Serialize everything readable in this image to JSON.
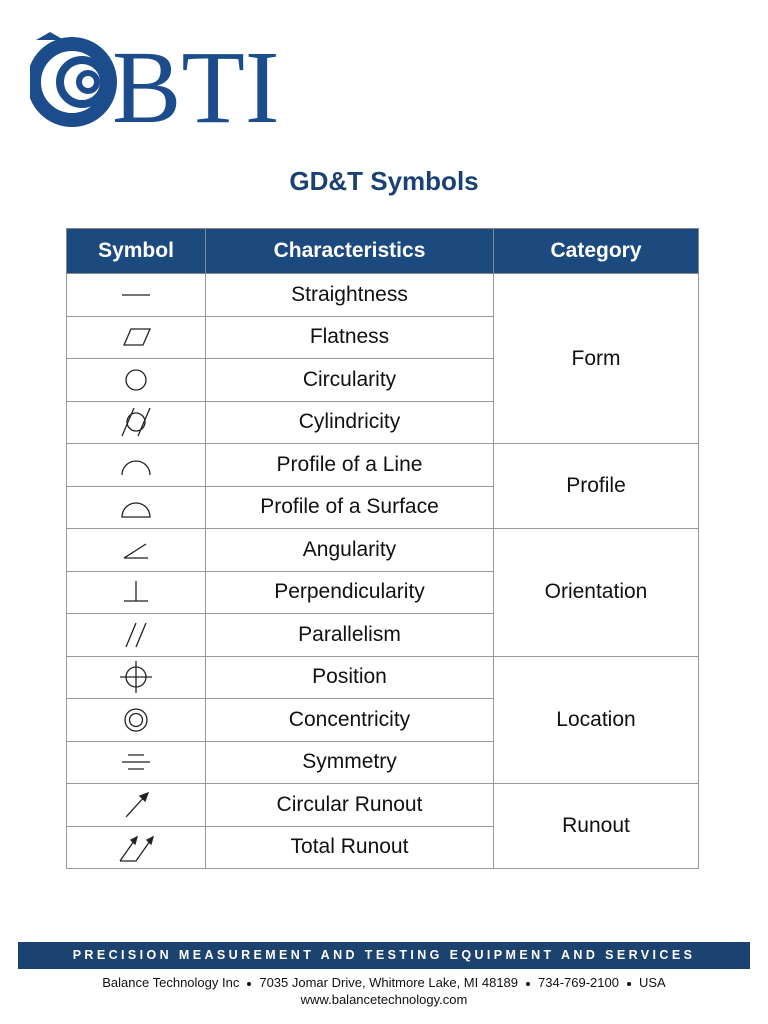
{
  "logo": {
    "text": "BTI"
  },
  "title": "GD&T Symbols",
  "table": {
    "headers": [
      "Symbol",
      "Characteristics",
      "Category"
    ],
    "groups": [
      {
        "category": "Form",
        "characteristics": [
          "Straightness",
          "Flatness",
          "Circularity",
          "Cylindricity"
        ]
      },
      {
        "category": "Profile",
        "characteristics": [
          "Profile of a Line",
          "Profile of a Surface"
        ]
      },
      {
        "category": "Orientation",
        "characteristics": [
          "Angularity",
          "Perpendicularity",
          "Parallelism"
        ]
      },
      {
        "category": "Location",
        "characteristics": [
          "Position",
          "Concentricity",
          "Symmetry"
        ]
      },
      {
        "category": "Runout",
        "characteristics": [
          "Circular Runout",
          "Total Runout"
        ]
      }
    ]
  },
  "footer": {
    "banner": "PRECISION MEASUREMENT AND TESTING EQUIPMENT AND SERVICES",
    "address_parts": [
      "Balance Technology Inc",
      "7035 Jomar Drive, Whitmore Lake, MI 48189",
      "734-769-2100",
      "USA"
    ],
    "website": "www.balancetechnology.com"
  }
}
